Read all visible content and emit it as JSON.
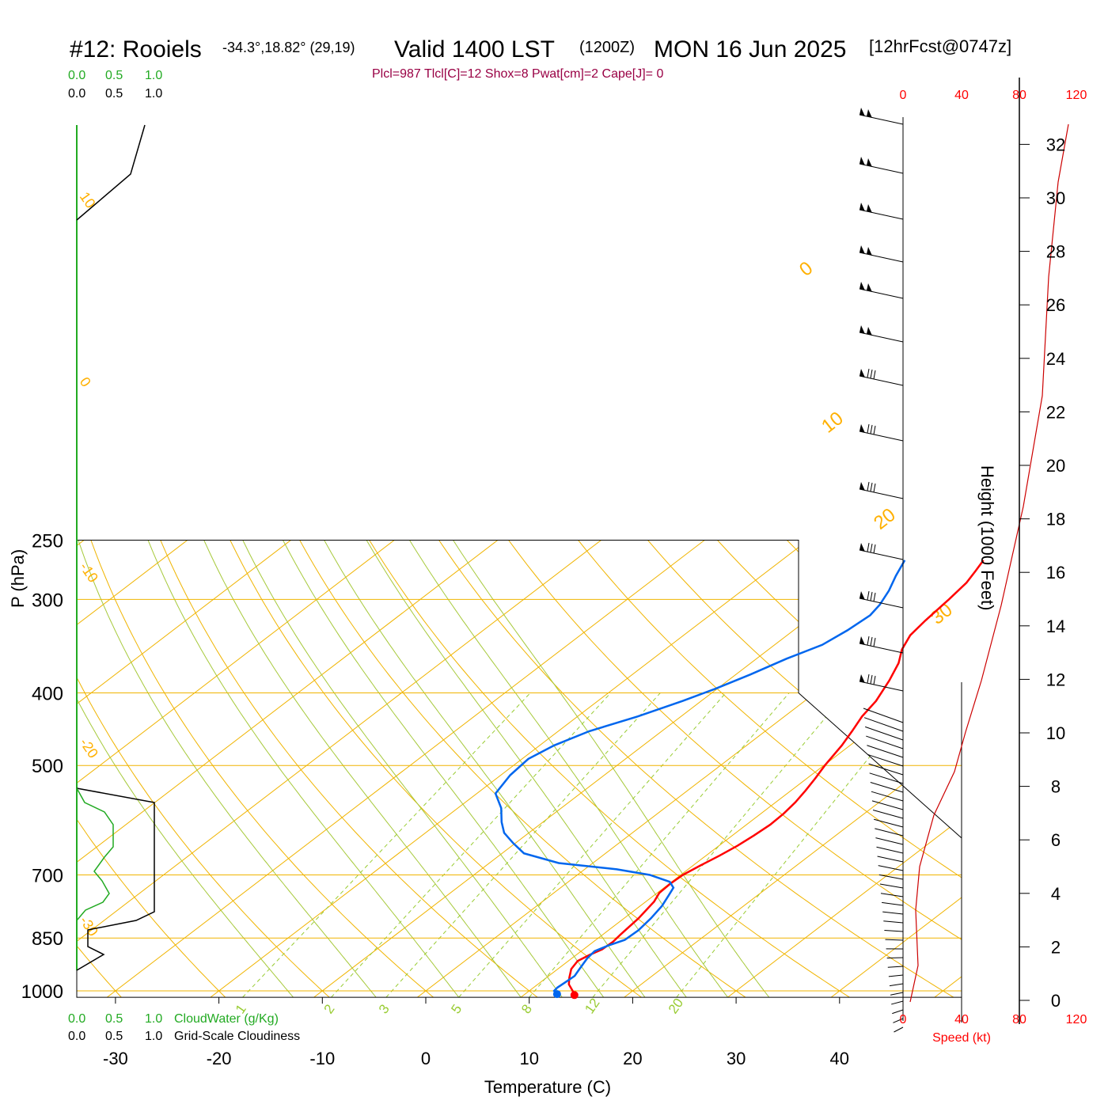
{
  "header": {
    "station": "#12: Rooiels",
    "coords": "-34.3°,18.82° (29,19)",
    "valid": "Valid 1400 LST",
    "zulu": "(1200Z)",
    "date": "MON 16 Jun 2025",
    "forecast": "[12hrFcst@0747z]"
  },
  "indices": "Plcl=987 Tlcl[C]=12 Shox=8 Pwat[cm]=2 Cape[J]= 0",
  "side_scales": {
    "cloudwater_ticks_top": [
      "0.0",
      "0.5",
      "1.0"
    ],
    "cloudiness_ticks_top": [
      "0.0",
      "0.5",
      "1.0"
    ],
    "cloudwater_ticks_bottom": [
      "0.0",
      "0.5",
      "1.0"
    ],
    "cloudiness_ticks_bottom": [
      "0.0",
      "0.5",
      "1.0"
    ],
    "cloudwater_label": "CloudWater (g/Kg)",
    "cloudiness_label": "Grid-Scale Cloudiness",
    "colors": {
      "cloudwater": "#22aa22",
      "cloudiness": "#000000"
    }
  },
  "speed_axis": {
    "ticks": [
      "0",
      "40",
      "80",
      "120"
    ],
    "label": "Speed (kt)",
    "color": "#ff0000"
  },
  "height_axis": {
    "label": "Height (1000 Feet)",
    "ticks": [
      "0",
      "2",
      "4",
      "6",
      "8",
      "10",
      "12",
      "14",
      "16",
      "18",
      "20",
      "22",
      "24",
      "26",
      "28",
      "30",
      "32"
    ]
  },
  "isotherm_labels": [
    "10",
    "0",
    "-10",
    "-20",
    "-30"
  ],
  "adiabat_labels": [
    "0",
    "10",
    "20",
    "30"
  ],
  "mixing_labels": [
    "1",
    "2",
    "3",
    "5",
    "8",
    "12",
    "20"
  ],
  "chart_data": {
    "type": "line",
    "title": "",
    "xlabel": "Temperature (C)",
    "ylabel": "P (hPa)",
    "x_ticks": [
      -30,
      -20,
      -10,
      0,
      10,
      20,
      30,
      40
    ],
    "x_tick_labels": [
      "-30",
      "-20",
      "-10",
      "0",
      "10",
      "20",
      "30",
      "40"
    ],
    "y_ticks": [
      250,
      300,
      400,
      500,
      700,
      850,
      1000
    ],
    "y_tick_labels": [
      "250",
      "300",
      "400",
      "500",
      "700",
      "850",
      "1000"
    ],
    "y_scale": "log",
    "ylim": [
      1020,
      250
    ],
    "series": [
      {
        "color": "#ff0000",
        "points": [
          [
            14.9,
            1013
          ],
          [
            14.2,
            1000
          ],
          [
            13.0,
            980
          ],
          [
            12.2,
            960
          ],
          [
            11.3,
            935
          ],
          [
            10.9,
            912
          ],
          [
            11.3,
            895
          ],
          [
            11.8,
            880
          ],
          [
            11.9,
            860
          ],
          [
            11.7,
            840
          ],
          [
            11.4,
            800
          ],
          [
            10.8,
            760
          ],
          [
            10.2,
            740
          ],
          [
            10.1,
            720
          ],
          [
            10.2,
            700
          ],
          [
            10.7,
            680
          ],
          [
            11.3,
            660
          ],
          [
            11.8,
            640
          ],
          [
            12.1,
            620
          ],
          [
            12.3,
            600
          ],
          [
            12.2,
            580
          ],
          [
            11.9,
            560
          ],
          [
            11.4,
            540
          ],
          [
            10.8,
            520
          ],
          [
            10.1,
            500
          ],
          [
            9.2,
            470
          ],
          [
            8.4,
            450
          ],
          [
            7.5,
            430
          ],
          [
            6.9,
            410
          ],
          [
            5.6,
            385
          ],
          [
            4.3,
            365
          ],
          [
            2.9,
            350
          ],
          [
            1.9,
            335
          ],
          [
            1.5,
            320
          ],
          [
            1.1,
            300
          ],
          [
            0.7,
            285
          ],
          [
            0.1,
            275
          ],
          [
            -0.5,
            266
          ]
        ]
      },
      {
        "color": "#0066ee",
        "points": [
          [
            13.1,
            1010
          ],
          [
            12.4,
            1000
          ],
          [
            12.3,
            990
          ],
          [
            12.4,
            975
          ],
          [
            12.5,
            955
          ],
          [
            12.1,
            935
          ],
          [
            11.5,
            905
          ],
          [
            11.3,
            885
          ],
          [
            11.9,
            870
          ],
          [
            12.8,
            855
          ],
          [
            12.9,
            830
          ],
          [
            12.6,
            800
          ],
          [
            12.1,
            770
          ],
          [
            11.4,
            745
          ],
          [
            10.9,
            728
          ],
          [
            9.8,
            715
          ],
          [
            7.0,
            700
          ],
          [
            3.1,
            688
          ],
          [
            -3.3,
            675
          ],
          [
            -7.9,
            655
          ],
          [
            -10.2,
            635
          ],
          [
            -12.4,
            615
          ],
          [
            -14.0,
            595
          ],
          [
            -15.8,
            570
          ],
          [
            -18.2,
            545
          ],
          [
            -19.1,
            515
          ],
          [
            -19.4,
            490
          ],
          [
            -18.6,
            470
          ],
          [
            -17.0,
            450
          ],
          [
            -14.2,
            430
          ],
          [
            -11.8,
            410
          ],
          [
            -10.2,
            395
          ],
          [
            -8.6,
            378
          ],
          [
            -7.1,
            360
          ],
          [
            -5.4,
            345
          ],
          [
            -4.8,
            330
          ],
          [
            -4.5,
            315
          ],
          [
            -4.9,
            305
          ],
          [
            -5.8,
            292
          ],
          [
            -7.0,
            279
          ],
          [
            -8.1,
            266
          ]
        ]
      }
    ]
  }
}
